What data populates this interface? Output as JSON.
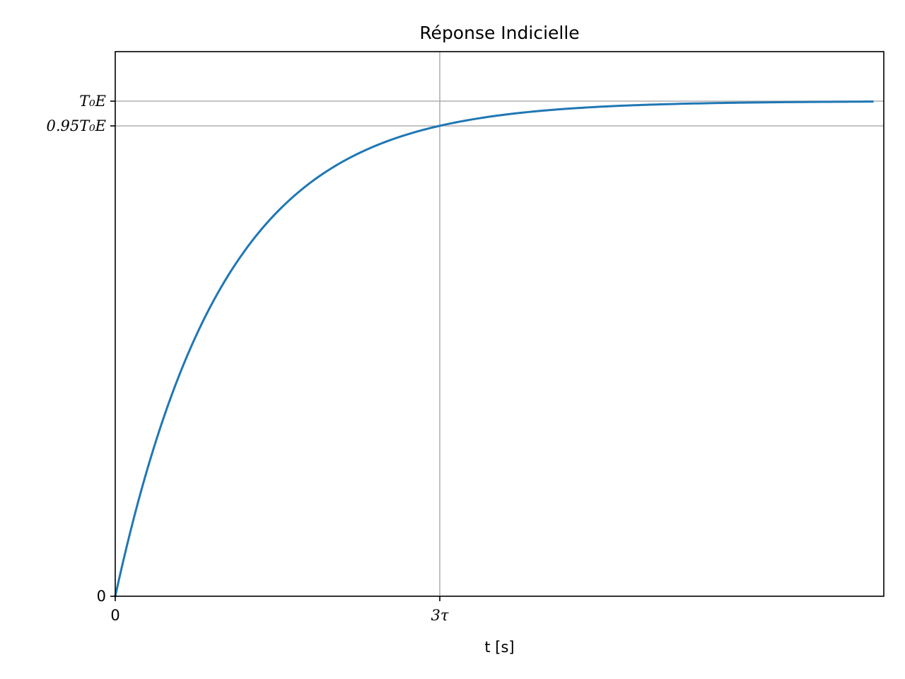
{
  "chart_data": {
    "type": "line",
    "title": "Réponse Indicielle",
    "xlabel": "t [s]",
    "ylabel": "",
    "grid": true,
    "legend": "none",
    "tau": 1,
    "xlim": [
      0,
      7
    ],
    "ylim": [
      0,
      1.1
    ],
    "xticks": [
      {
        "value": 0,
        "label": "0"
      },
      {
        "value": 3,
        "label": "3τ"
      }
    ],
    "yticks": [
      {
        "value": 0,
        "label": "0"
      },
      {
        "value": 0.95,
        "label": "0.95T₀E"
      },
      {
        "value": 1.0,
        "label": "T₀E"
      }
    ],
    "gridlines": {
      "x": [
        3
      ],
      "y": [
        0.95,
        1.0
      ]
    },
    "series": [
      {
        "color": "#1f77b4",
        "function": "1 - exp(-t / tau)",
        "x_start": 0,
        "x_end": 7,
        "points": [
          [
            0,
            0
          ],
          [
            0.5,
            0.393
          ],
          [
            1,
            0.632
          ],
          [
            1.5,
            0.777
          ],
          [
            2,
            0.865
          ],
          [
            2.5,
            0.918
          ],
          [
            3,
            0.95
          ],
          [
            3.5,
            0.97
          ],
          [
            4,
            0.982
          ],
          [
            4.5,
            0.989
          ],
          [
            5,
            0.993
          ],
          [
            5.5,
            0.996
          ],
          [
            6,
            0.998
          ],
          [
            6.5,
            0.998
          ],
          [
            7,
            0.999
          ]
        ]
      }
    ]
  }
}
